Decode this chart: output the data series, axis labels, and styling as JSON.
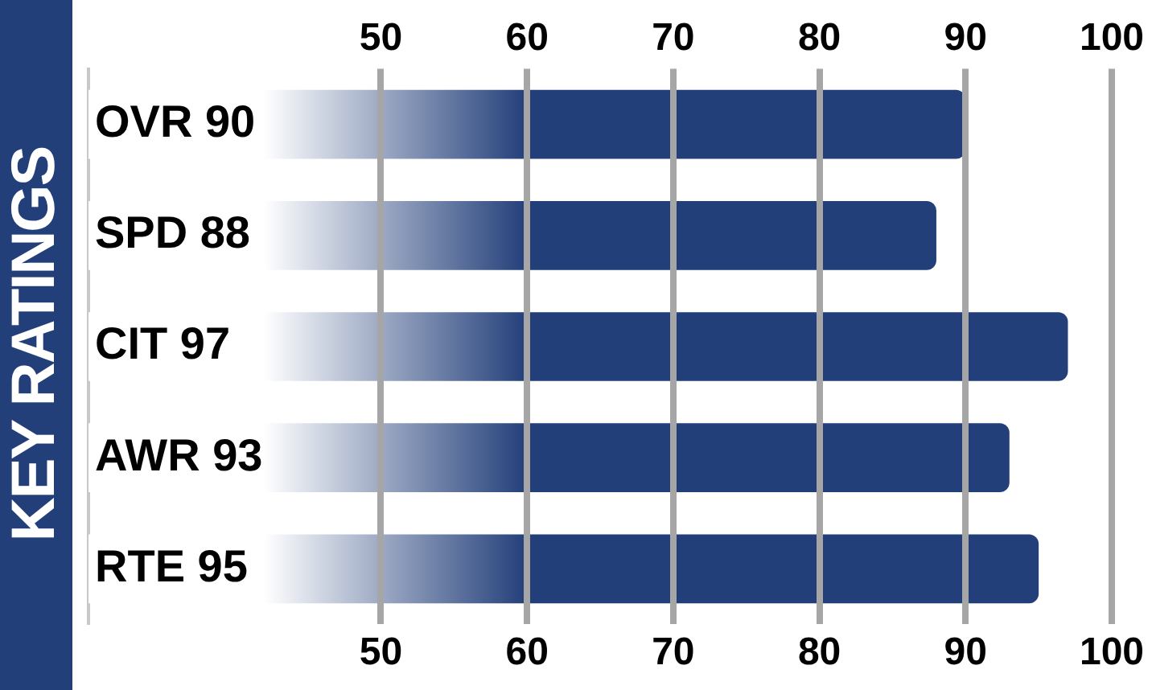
{
  "chart_data": {
    "type": "bar",
    "orientation": "horizontal",
    "title": "KEY RATINGS",
    "categories": [
      "OVR 90",
      "SPD 88",
      "CIT 97",
      "AWR 93",
      "RTE 95"
    ],
    "values": [
      90,
      88,
      97,
      93,
      95
    ],
    "color": "#233f7a",
    "xlim": [
      30,
      100
    ],
    "xticks": [
      50,
      60,
      70,
      80,
      90,
      100
    ],
    "x2lim": [
      30,
      100
    ],
    "x2ticks": [
      50,
      60,
      70,
      80,
      90,
      100
    ],
    "grid": "x",
    "legend": false
  }
}
